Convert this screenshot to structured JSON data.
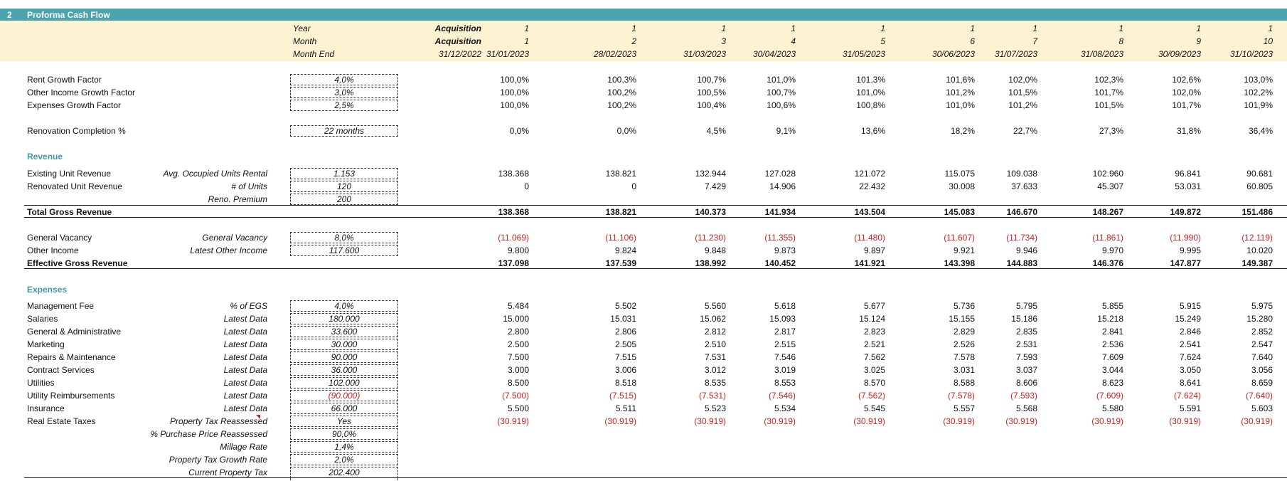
{
  "section": {
    "number": "2",
    "title": "Proforma Cash Flow"
  },
  "header": {
    "labels": [
      "Year",
      "Month",
      "Month End"
    ],
    "acquisition": [
      "Acquisition",
      "Acquisition",
      "31/12/2022"
    ],
    "years": [
      "1",
      "1",
      "1",
      "1",
      "1",
      "1",
      "1",
      "1",
      "1",
      "1"
    ],
    "months": [
      "1",
      "2",
      "3",
      "4",
      "5",
      "6",
      "7",
      "8",
      "9",
      "10"
    ],
    "month_end": [
      "31/01/2023",
      "28/02/2023",
      "31/03/2023",
      "30/04/2023",
      "31/05/2023",
      "30/06/2023",
      "31/07/2023",
      "31/08/2023",
      "30/09/2023",
      "31/10/2023"
    ]
  },
  "rows": [
    {
      "id": "rent-growth-factor",
      "label": "Rent Growth Factor",
      "input": "4,0%",
      "values": [
        "100,0%",
        "100,3%",
        "100,7%",
        "101,0%",
        "101,3%",
        "101,6%",
        "102,0%",
        "102,3%",
        "102,6%",
        "103,0%"
      ]
    },
    {
      "id": "other-income-growth-factor",
      "label": "Other Income Growth Factor",
      "input": "3,0%",
      "values": [
        "100,0%",
        "100,2%",
        "100,5%",
        "100,7%",
        "101,0%",
        "101,2%",
        "101,5%",
        "101,7%",
        "102,0%",
        "102,2%"
      ]
    },
    {
      "id": "expenses-growth-factor",
      "label": "Expenses Growth Factor",
      "input": "2,5%",
      "values": [
        "100,0%",
        "100,2%",
        "100,4%",
        "100,6%",
        "100,8%",
        "101,0%",
        "101,2%",
        "101,5%",
        "101,7%",
        "101,9%"
      ]
    },
    {
      "id": "renovation-completion",
      "label": "Renovation Completion %",
      "input": "22 months",
      "values": [
        "0,0%",
        "0,0%",
        "4,5%",
        "9,1%",
        "13,6%",
        "18,2%",
        "22,7%",
        "27,3%",
        "31,8%",
        "36,4%"
      ]
    },
    {
      "id": "revenue-heading",
      "label": "Revenue"
    },
    {
      "id": "existing-unit-revenue",
      "label": "Existing Unit Revenue",
      "sublabel": "Avg. Occupied Units Rental",
      "input": "1.153",
      "values": [
        "138.368",
        "138.821",
        "132.944",
        "127.028",
        "121.072",
        "115.075",
        "109.038",
        "102.960",
        "96.841",
        "90.681"
      ]
    },
    {
      "id": "renovated-unit-revenue",
      "label": "Renovated Unit Revenue",
      "sublabel": "# of Units",
      "input": "120",
      "values": [
        "0",
        "0",
        "7.429",
        "14.906",
        "22.432",
        "30.008",
        "37.633",
        "45.307",
        "53.031",
        "60.805"
      ]
    },
    {
      "id": "reno-premium",
      "sublabel": "Reno. Premium",
      "input": "200"
    },
    {
      "id": "total-gross-revenue",
      "label": "Total Gross Revenue",
      "values": [
        "138.368",
        "138.821",
        "140.373",
        "141.934",
        "143.504",
        "145.083",
        "146.670",
        "148.267",
        "149.872",
        "151.486"
      ]
    },
    {
      "id": "general-vacancy",
      "label": "General Vacancy",
      "sublabel": "General Vacancy",
      "input": "8,0%",
      "values": [
        "(11.069)",
        "(11.106)",
        "(11.230)",
        "(11.355)",
        "(11.480)",
        "(11.607)",
        "(11.734)",
        "(11.861)",
        "(11.990)",
        "(12.119)"
      ]
    },
    {
      "id": "other-income",
      "label": "Other Income",
      "sublabel": "Latest Other Income",
      "input": "117.600",
      "values": [
        "9.800",
        "9.824",
        "9.848",
        "9.873",
        "9.897",
        "9.921",
        "9.946",
        "9.970",
        "9.995",
        "10.020"
      ]
    },
    {
      "id": "effective-gross-revenue",
      "label": "Effective Gross Revenue",
      "values": [
        "137.098",
        "137.539",
        "138.992",
        "140.452",
        "141.921",
        "143.398",
        "144.883",
        "146.376",
        "147.877",
        "149.387"
      ]
    },
    {
      "id": "expenses-heading",
      "label": "Expenses"
    },
    {
      "id": "management-fee",
      "label": "Management Fee",
      "sublabel": "% of EGS",
      "input": "4,0%",
      "values": [
        "5.484",
        "5.502",
        "5.560",
        "5.618",
        "5.677",
        "5.736",
        "5.795",
        "5.855",
        "5.915",
        "5.975"
      ]
    },
    {
      "id": "salaries",
      "label": "Salaries",
      "sublabel": "Latest Data",
      "input": "180.000",
      "values": [
        "15.000",
        "15.031",
        "15.062",
        "15.093",
        "15.124",
        "15.155",
        "15.186",
        "15.218",
        "15.249",
        "15.280"
      ]
    },
    {
      "id": "general-administrative",
      "label": "General & Administrative",
      "sublabel": "Latest Data",
      "input": "33.600",
      "values": [
        "2.800",
        "2.806",
        "2.812",
        "2.817",
        "2.823",
        "2.829",
        "2.835",
        "2.841",
        "2.846",
        "2.852"
      ]
    },
    {
      "id": "marketing",
      "label": "Marketing",
      "sublabel": "Latest Data",
      "input": "30.000",
      "values": [
        "2.500",
        "2.505",
        "2.510",
        "2.515",
        "2.521",
        "2.526",
        "2.531",
        "2.536",
        "2.541",
        "2.547"
      ]
    },
    {
      "id": "repairs-maintenance",
      "label": "Repairs & Maintenance",
      "sublabel": "Latest Data",
      "input": "90.000",
      "values": [
        "7.500",
        "7.515",
        "7.531",
        "7.546",
        "7.562",
        "7.578",
        "7.593",
        "7.609",
        "7.624",
        "7.640"
      ]
    },
    {
      "id": "contract-services",
      "label": "Contract Services",
      "sublabel": "Latest Data",
      "input": "36.000",
      "values": [
        "3.000",
        "3.006",
        "3.012",
        "3.019",
        "3.025",
        "3.031",
        "3.037",
        "3.044",
        "3.050",
        "3.056"
      ]
    },
    {
      "id": "utilities",
      "label": "Utilities",
      "sublabel": "Latest Data",
      "input": "102.000",
      "values": [
        "8.500",
        "8.518",
        "8.535",
        "8.553",
        "8.570",
        "8.588",
        "8.606",
        "8.623",
        "8.641",
        "8.659"
      ]
    },
    {
      "id": "utility-reimbursements",
      "label": "Utility Reimbursements",
      "sublabel": "Latest Data",
      "input": "(90.000)",
      "values": [
        "(7.500)",
        "(7.515)",
        "(7.531)",
        "(7.546)",
        "(7.562)",
        "(7.578)",
        "(7.593)",
        "(7.609)",
        "(7.624)",
        "(7.640)"
      ]
    },
    {
      "id": "insurance",
      "label": "Insurance",
      "sublabel": "Latest Data",
      "input": "66.000",
      "values": [
        "5.500",
        "5.511",
        "5.523",
        "5.534",
        "5.545",
        "5.557",
        "5.568",
        "5.580",
        "5.591",
        "5.603"
      ]
    },
    {
      "id": "real-estate-taxes",
      "label": "Real Estate Taxes",
      "sublabel": "Property Tax Reassessed",
      "input": "Yes",
      "values": [
        "(30.919)",
        "(30.919)",
        "(30.919)",
        "(30.919)",
        "(30.919)",
        "(30.919)",
        "(30.919)",
        "(30.919)",
        "(30.919)",
        "(30.919)"
      ]
    },
    {
      "id": "pct-purchase-price-reassessed",
      "sublabel": "% Purchase Price Reassessed",
      "input": "90,0%"
    },
    {
      "id": "millage-rate",
      "sublabel": "Millage Rate",
      "input": "1,4%"
    },
    {
      "id": "property-tax-growth-rate",
      "sublabel": "Property Tax Growth Rate",
      "input": "2,0%"
    },
    {
      "id": "current-property-tax",
      "sublabel": "Current Property Tax",
      "input": "202.400"
    }
  ]
}
